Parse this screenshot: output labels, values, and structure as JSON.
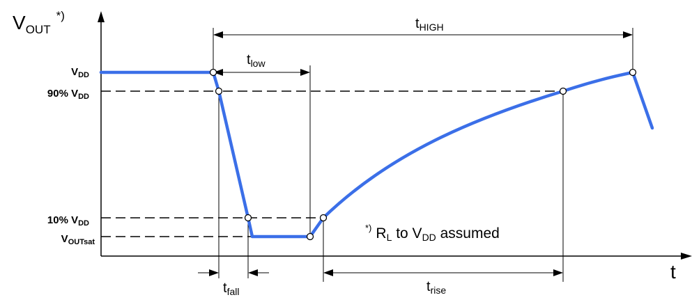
{
  "axes": {
    "y_main": "V",
    "y_sub": "OUT",
    "y_note": "*)",
    "x": "t"
  },
  "levels": {
    "vdd": {
      "main": "V",
      "sub": "DD"
    },
    "p90": {
      "main": "90% V",
      "sub": "DD"
    },
    "p10": {
      "main": "10% V",
      "sub": "DD"
    },
    "voutsat": {
      "main": "V",
      "sub": "OUTsat"
    }
  },
  "intervals": {
    "t_high": {
      "main": "t",
      "sub": "HIGH"
    },
    "t_low": {
      "main": "t",
      "sub": "low"
    },
    "t_fall": {
      "main": "t",
      "sub": "fall"
    },
    "t_rise": {
      "main": "t",
      "sub": "rise"
    }
  },
  "note": {
    "marker": "*)",
    "r_main": "R",
    "r_sub": "L",
    "to": " to V",
    "vdd_sub": "DD",
    "tail": " assumed"
  },
  "colors": {
    "waveform": "#3b6fe8"
  }
}
